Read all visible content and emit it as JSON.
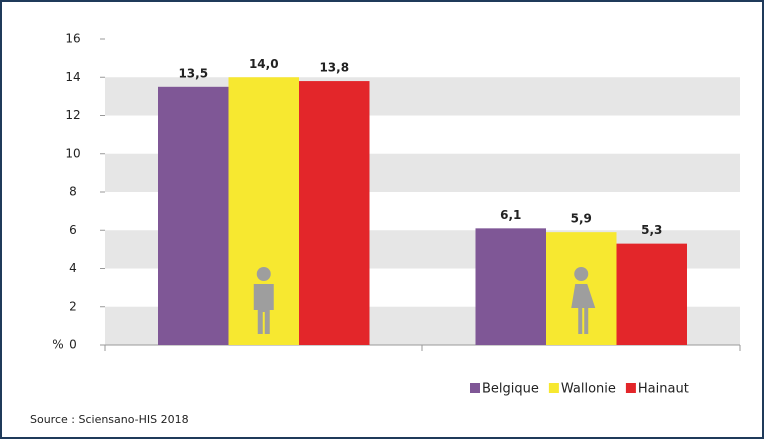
{
  "chart_data": {
    "type": "bar",
    "categories": [
      null,
      null
    ],
    "series": [
      {
        "name": "Belgique",
        "color": "#7f5796",
        "values": [
          13.5,
          6.1
        ],
        "value_labels": [
          "13,5",
          "6,1"
        ]
      },
      {
        "name": "Wallonie",
        "color": "#f7e830",
        "values": [
          14.0,
          5.9
        ],
        "value_labels": [
          "14,0",
          "5,9"
        ]
      },
      {
        "name": "Hainaut",
        "color": "#e3262a",
        "values": [
          13.8,
          5.3
        ],
        "value_labels": [
          "13,8",
          "5,3"
        ]
      }
    ],
    "y_label": "%",
    "ylim": [
      0,
      16
    ],
    "yticks": [
      0,
      2,
      4,
      6,
      8,
      10,
      12,
      14,
      16
    ],
    "grid": "bands",
    "band_color": "#e6e6e6",
    "legend": "bottom-right",
    "source": "Source : Sciensano-HIS 2018"
  }
}
